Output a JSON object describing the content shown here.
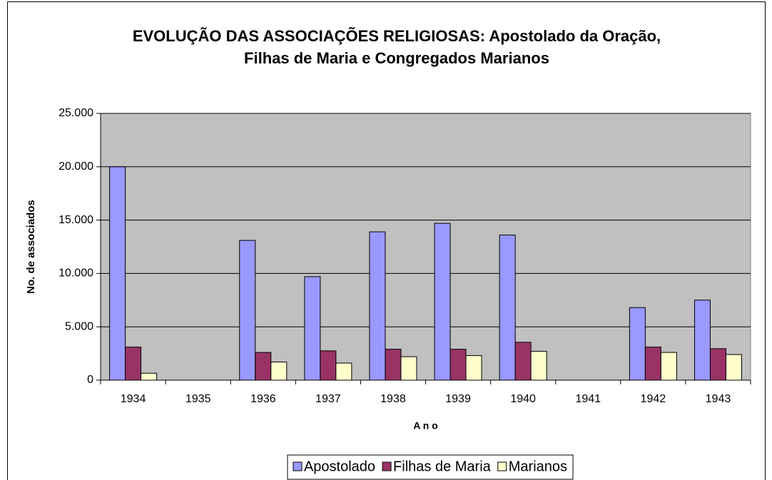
{
  "chart_data": {
    "type": "bar",
    "title": "EVOLUÇÃO DAS ASSOCIAÇÕES RELIGIOSAS: Apostolado da Oração, Filhas de Maria e Congregados Marianos",
    "x_label": "A n o",
    "y_label": "No. de associados",
    "categories": [
      "1934",
      "1935",
      "1936",
      "1937",
      "1938",
      "1939",
      "1940",
      "1941",
      "1942",
      "1943"
    ],
    "series": [
      {
        "name": "Apostolado",
        "color": "#9999ff",
        "values": [
          20000,
          null,
          13100,
          9700,
          13900,
          14700,
          13600,
          null,
          6800,
          7500
        ]
      },
      {
        "name": "Filhas de Maria",
        "color": "#993366",
        "values": [
          3100,
          null,
          2600,
          2750,
          2900,
          2900,
          3550,
          null,
          3100,
          2950
        ]
      },
      {
        "name": "Marianos",
        "color": "#ffffcc",
        "values": [
          650,
          null,
          1700,
          1600,
          2200,
          2300,
          2700,
          null,
          2600,
          2400
        ]
      }
    ],
    "ylim": [
      0,
      25000
    ],
    "yticks": [
      0,
      {
        "value": 5000,
        "label": "5.000"
      },
      {
        "value": 10000,
        "label": "10.000"
      },
      {
        "value": 15000,
        "label": "15.000"
      },
      {
        "value": 20000,
        "label": "20.000"
      },
      {
        "value": 25000,
        "label": "25.000"
      }
    ],
    "grid": true,
    "plot_background": "#c0c0c0",
    "legend": "bottom"
  }
}
